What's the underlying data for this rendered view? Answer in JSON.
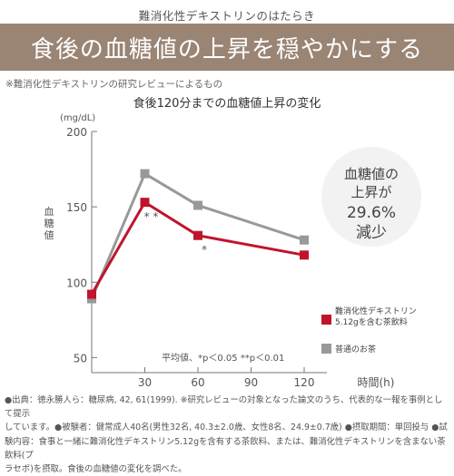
{
  "header": {
    "label": "難消化性デキストリンのはたらき",
    "banner_title": "食後の血糖値の上昇を穏やかにする",
    "intro_note": "※難消化性デキストリンの研究レビューによるもの"
  },
  "chart_data": {
    "type": "line",
    "title": "食後120分までの血糖値上昇の変化",
    "y_unit": "(mg/dL)",
    "ylabel": "血糖値",
    "xlabel": "時間(h)",
    "x": [
      0,
      30,
      60,
      120
    ],
    "xticks": [
      "30",
      "60",
      "90",
      "120"
    ],
    "xtick_values": [
      30,
      60,
      90,
      120
    ],
    "ylim": [
      50,
      200
    ],
    "xlim": [
      0,
      120
    ],
    "yticks": [
      50,
      100,
      150,
      200
    ],
    "series": [
      {
        "name": "普通のお茶",
        "color": "#999999",
        "values": [
          89,
          172,
          151,
          128
        ]
      },
      {
        "name": "難消化性デキストリン 5.12gを含む茶飲料",
        "legend_line1": "難消化性デキストリン",
        "legend_line2": "5.12gを含む茶飲料",
        "color": "#c0142c",
        "values": [
          92,
          153,
          131,
          118
        ]
      }
    ],
    "annotations": [
      {
        "text": "* *",
        "x": 30,
        "y": 153
      },
      {
        "text": "*",
        "x": 60,
        "y": 131
      }
    ],
    "stat_note": "平均値、*p＜0.05 **p＜0.01",
    "callout": {
      "line1": "血糖値の",
      "line2": "上昇が",
      "line3": "29.6%",
      "line4": "減少"
    }
  },
  "footnotes": {
    "line1": "●出典：徳永勝人ら：糖尿病, 42, 61(1999). ※研究レビューの対象となった論文のうち、代表的な一報を事例として提示",
    "line2": "しています。●被験者：健常成人40名(男性32名, 40.3±2.0歳、女性8名、24.9±0.7歳) ●摂取期間：単回投与 ●試",
    "line3": "験内容：食事と一緒に難消化性デキストリン5.12gを含有する茶飲料、または、難消化性デキストリンを含まない茶飲料(プ",
    "line4": "ラセボ)を摂取。食後の血糖値の変化を調べた。"
  }
}
